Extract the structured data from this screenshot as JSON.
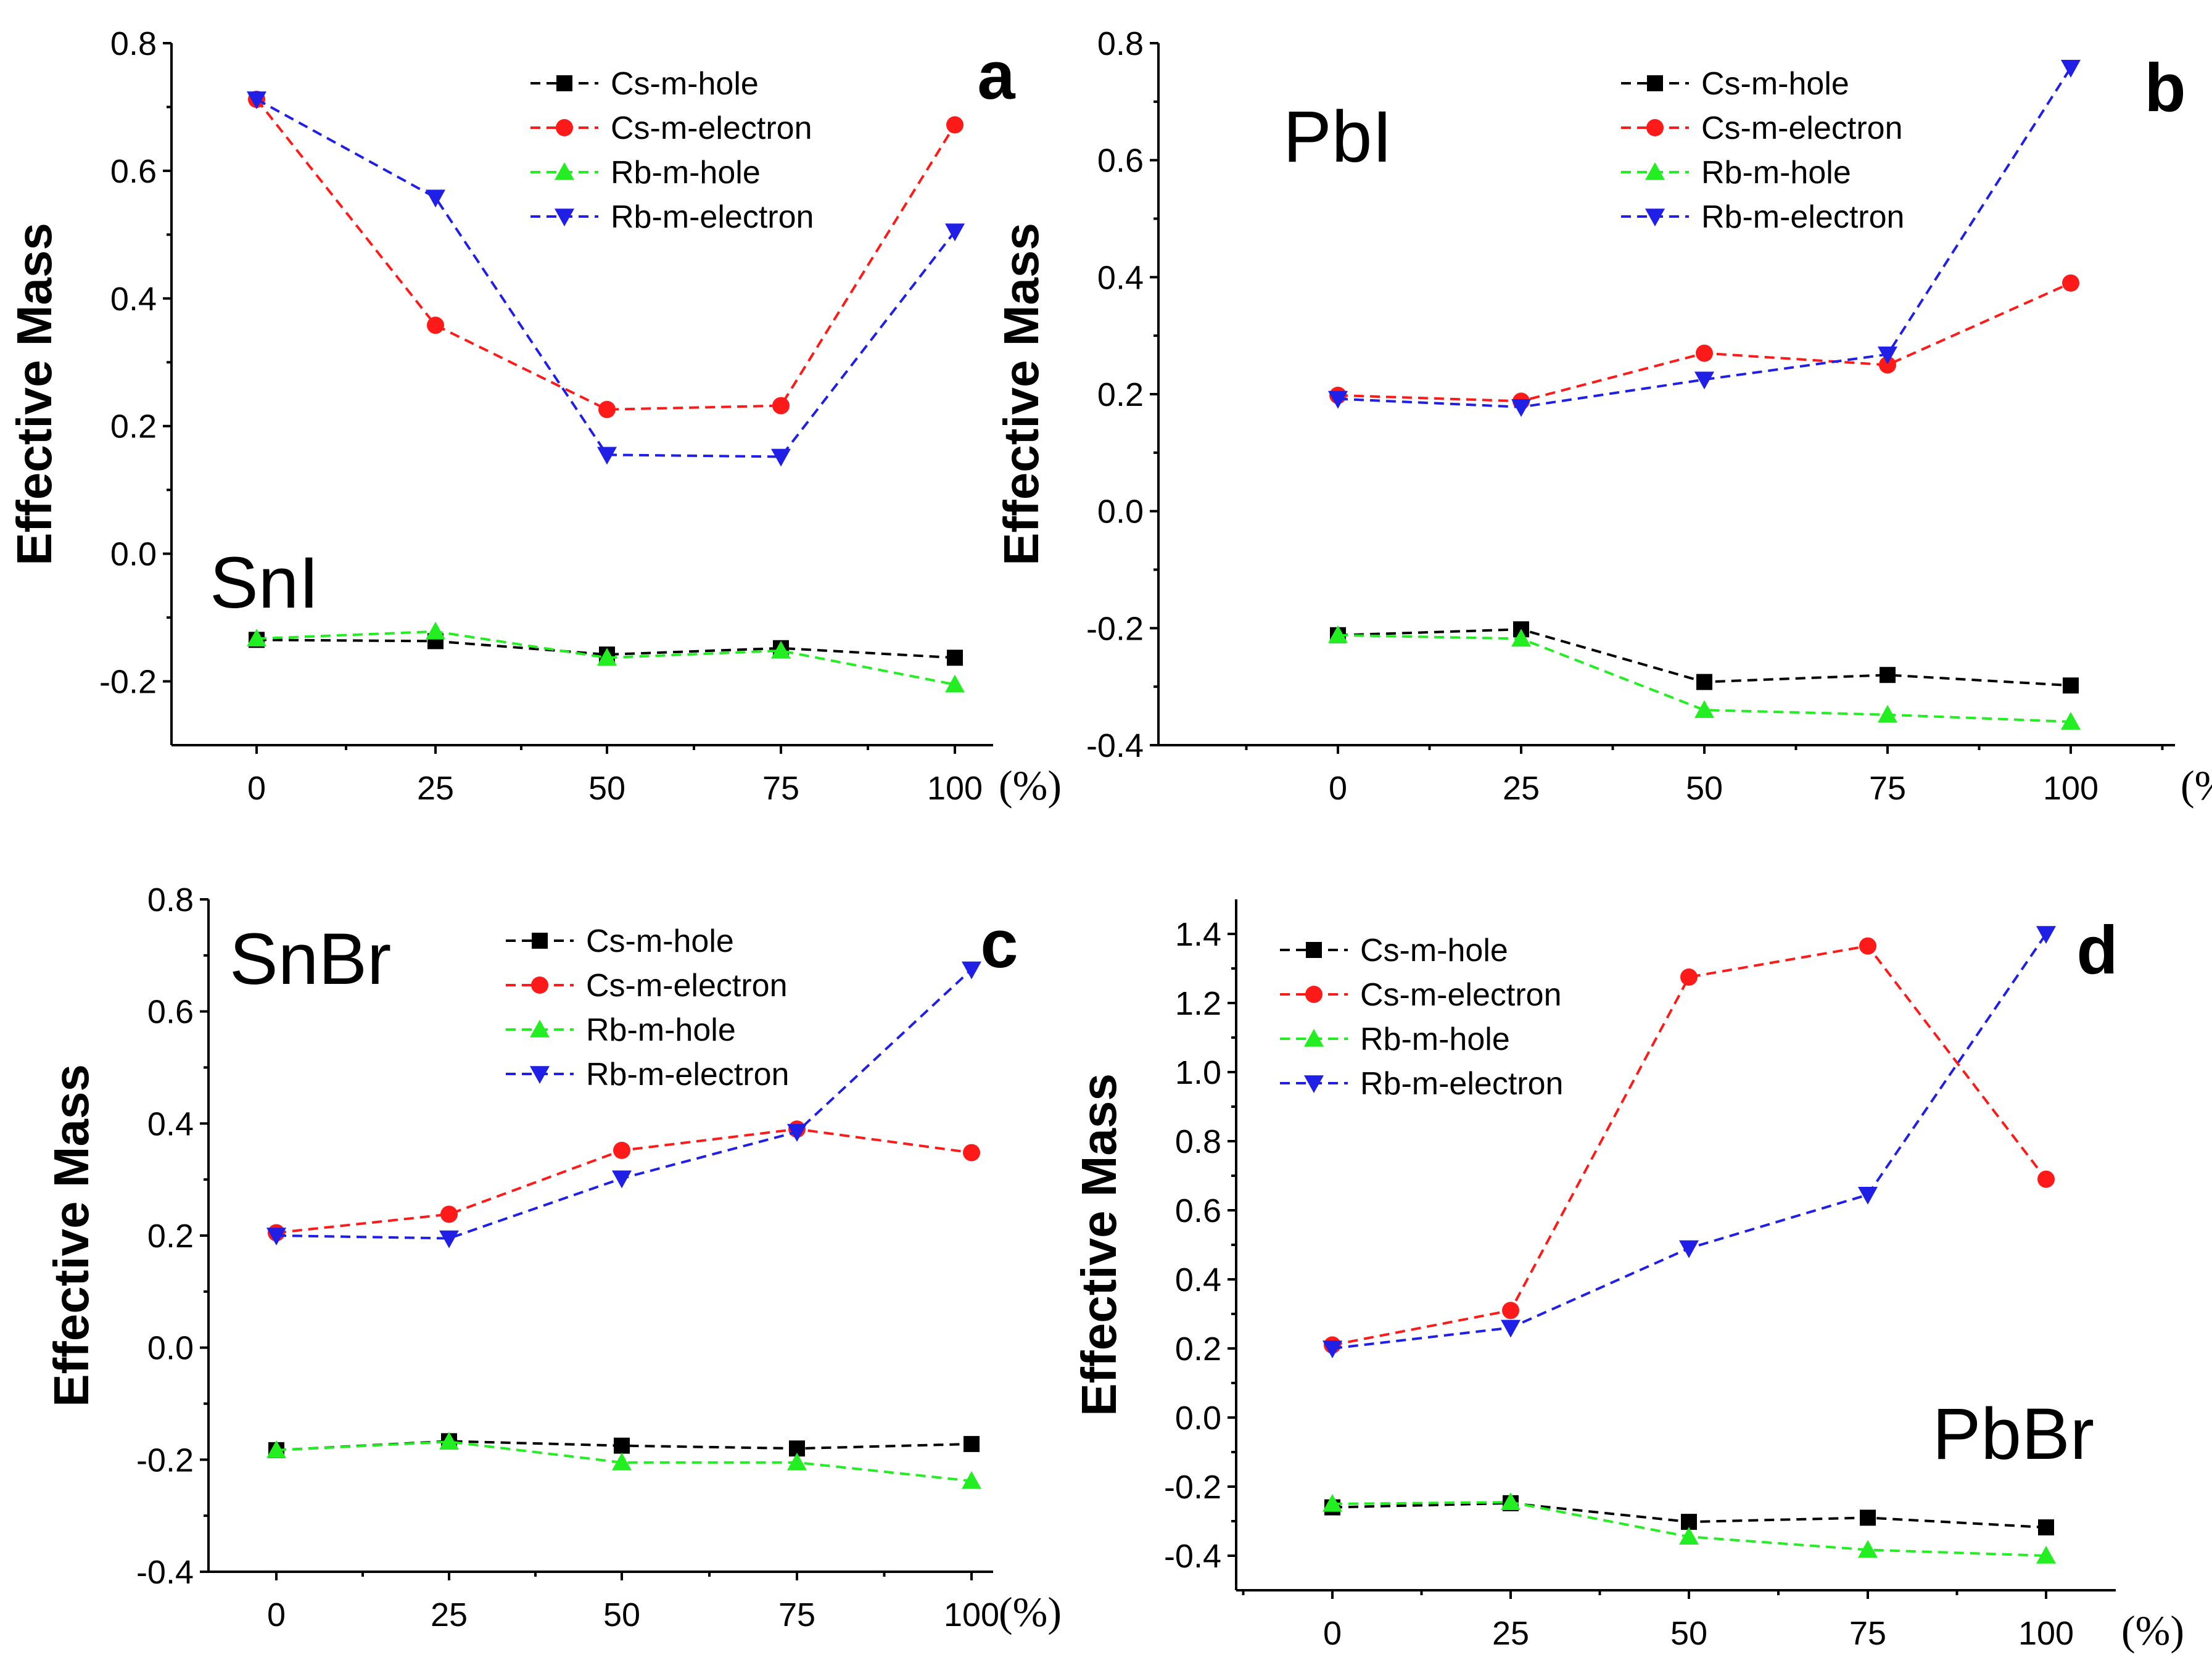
{
  "figure": {
    "panels_count": 4
  },
  "colors": {
    "Cs-m-hole": "#000000",
    "Cs-m-electron": "#ff1a1a",
    "Rb-m-hole": "#22ee22",
    "Rb-m-electron": "#1f1fe6"
  },
  "markers": {
    "Cs-m-hole": "square",
    "Cs-m-electron": "circle",
    "Rb-m-hole": "triangle-up",
    "Rb-m-electron": "triangle-down"
  },
  "chart_data": [
    {
      "type": "line",
      "letter": "a",
      "compound": "SnI",
      "compound_pos": "bottom-left",
      "ylabel": "Effective Mass",
      "xunit": "(%)",
      "x": [
        0,
        25,
        50,
        75,
        100
      ],
      "xticks": [
        "0",
        "25",
        "50",
        "75",
        "100"
      ],
      "ylim": [
        -0.3,
        0.8
      ],
      "yticks": [
        "-0.2",
        "0.0",
        "0.2",
        "0.4",
        "0.6",
        "0.8"
      ],
      "ytick_values": [
        -0.2,
        0.0,
        0.2,
        0.4,
        0.6,
        0.8
      ],
      "legend": "top-right",
      "series": [
        {
          "name": "Cs-m-hole",
          "values": [
            -0.135,
            -0.137,
            -0.158,
            -0.148,
            -0.163
          ]
        },
        {
          "name": "Cs-m-electron",
          "values": [
            0.712,
            0.358,
            0.226,
            0.232,
            0.672
          ]
        },
        {
          "name": "Rb-m-hole",
          "values": [
            -0.133,
            -0.122,
            -0.163,
            -0.152,
            -0.205
          ]
        },
        {
          "name": "Rb-m-electron",
          "values": [
            0.712,
            0.558,
            0.155,
            0.152,
            0.505
          ]
        }
      ]
    },
    {
      "type": "line",
      "letter": "b",
      "compound": "PbI",
      "compound_pos": "top-left",
      "ylabel": "Effective Mass",
      "xunit": "(%)",
      "x": [
        0,
        25,
        50,
        75,
        100
      ],
      "xticks": [
        "0",
        "25",
        "50",
        "75",
        "100"
      ],
      "ylim": [
        -0.4,
        0.8
      ],
      "yticks": [
        "-0.4",
        "-0.2",
        "0.0",
        "0.2",
        "0.4",
        "0.6",
        "0.8"
      ],
      "ytick_values": [
        -0.4,
        -0.2,
        0.0,
        0.2,
        0.4,
        0.6,
        0.8
      ],
      "legend": "top-right",
      "series": [
        {
          "name": "Cs-m-hole",
          "values": [
            -0.212,
            -0.202,
            -0.292,
            -0.28,
            -0.298
          ]
        },
        {
          "name": "Cs-m-electron",
          "values": [
            0.198,
            0.188,
            0.27,
            0.25,
            0.39
          ]
        },
        {
          "name": "Rb-m-hole",
          "values": [
            -0.212,
            -0.218,
            -0.34,
            -0.348,
            -0.36
          ]
        },
        {
          "name": "Rb-m-electron",
          "values": [
            0.192,
            0.178,
            0.225,
            0.268,
            0.758
          ]
        }
      ]
    },
    {
      "type": "line",
      "letter": "c",
      "compound": "SnBr",
      "compound_pos": "top-left",
      "ylabel": "Effective Mass",
      "xunit": "(%)",
      "x": [
        0,
        25,
        50,
        75,
        100
      ],
      "xticks": [
        "0",
        "25",
        "50",
        "75",
        "100"
      ],
      "ylim": [
        -0.4,
        0.8
      ],
      "yticks": [
        "-0.4",
        "-0.2",
        "0.0",
        "0.2",
        "0.4",
        "0.6",
        "0.8"
      ],
      "ytick_values": [
        -0.4,
        -0.2,
        0.0,
        0.2,
        0.4,
        0.6,
        0.8
      ],
      "legend": "top-right",
      "series": [
        {
          "name": "Cs-m-hole",
          "values": [
            -0.183,
            -0.167,
            -0.175,
            -0.18,
            -0.172
          ]
        },
        {
          "name": "Cs-m-electron",
          "values": [
            0.205,
            0.238,
            0.352,
            0.39,
            0.348
          ]
        },
        {
          "name": "Rb-m-hole",
          "values": [
            -0.183,
            -0.168,
            -0.205,
            -0.205,
            -0.238
          ]
        },
        {
          "name": "Rb-m-electron",
          "values": [
            0.2,
            0.195,
            0.302,
            0.385,
            0.675
          ]
        }
      ]
    },
    {
      "type": "line",
      "letter": "d",
      "compound": "PbBr",
      "compound_pos": "bottom-right",
      "ylabel": "Effective Mass",
      "xunit": "(%)",
      "x": [
        0,
        25,
        50,
        75,
        100
      ],
      "xticks": [
        "0",
        "25",
        "50",
        "75",
        "100"
      ],
      "ylim": [
        -0.5,
        1.5
      ],
      "yticks": [
        "-0.4",
        "-0.2",
        "0.0",
        "0.2",
        "0.4",
        "0.6",
        "0.8",
        "1.0",
        "1.2",
        "1.4"
      ],
      "ytick_values": [
        -0.4,
        -0.2,
        0.0,
        0.2,
        0.4,
        0.6,
        0.8,
        1.0,
        1.2,
        1.4
      ],
      "legend": "top-left",
      "series": [
        {
          "name": "Cs-m-hole",
          "values": [
            -0.26,
            -0.248,
            -0.302,
            -0.29,
            -0.318
          ]
        },
        {
          "name": "Cs-m-electron",
          "values": [
            0.21,
            0.31,
            1.275,
            1.365,
            0.69
          ]
        },
        {
          "name": "Rb-m-hole",
          "values": [
            -0.25,
            -0.245,
            -0.345,
            -0.383,
            -0.4
          ]
        },
        {
          "name": "Rb-m-electron",
          "values": [
            0.2,
            0.26,
            0.49,
            0.645,
            1.4
          ]
        }
      ]
    }
  ]
}
